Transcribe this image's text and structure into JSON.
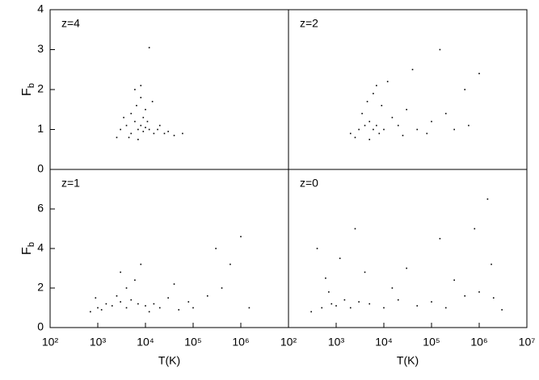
{
  "chart_data": [
    {
      "type": "scatter",
      "annotation": "z=4",
      "color": "#000000",
      "log_x": true,
      "x": [
        3000,
        4000,
        5000,
        6000,
        7000,
        8000,
        9000,
        10000,
        12000,
        15000,
        5000,
        6500,
        8000,
        10000,
        4500,
        7000,
        9000,
        11000,
        20000,
        30000,
        40000,
        60000,
        3500,
        2500,
        14000,
        18000,
        25000,
        8000,
        6000,
        12000
      ],
      "y": [
        1.0,
        1.1,
        0.9,
        1.2,
        1.0,
        1.1,
        0.95,
        1.05,
        1.0,
        0.9,
        1.4,
        1.6,
        1.8,
        1.5,
        0.8,
        0.75,
        1.3,
        1.2,
        1.1,
        0.95,
        0.85,
        0.9,
        1.3,
        0.8,
        1.7,
        1.0,
        0.9,
        2.1,
        2.0,
        3.05
      ],
      "xlim": [
        100,
        10000000
      ],
      "ylim": [
        0,
        4
      ],
      "yticks": [
        0,
        1,
        2,
        3,
        4
      ],
      "ylabel": [
        "F",
        "b"
      ]
    },
    {
      "type": "scatter",
      "annotation": "z=2",
      "color": "#000000",
      "log_x": true,
      "x": [
        2000,
        3000,
        4000,
        5000,
        6000,
        7000,
        8000,
        10000,
        3500,
        4500,
        6000,
        9000,
        15000,
        20000,
        30000,
        50000,
        80000,
        100000,
        200000,
        300000,
        500000,
        1000000,
        2500,
        12000,
        40000,
        150000,
        7000,
        5000,
        25000,
        600000
      ],
      "y": [
        0.9,
        1.0,
        1.1,
        1.2,
        1.0,
        1.1,
        0.9,
        1.0,
        1.4,
        1.7,
        1.9,
        1.6,
        1.3,
        1.1,
        1.5,
        1.0,
        0.9,
        1.2,
        1.4,
        1.0,
        2.0,
        2.4,
        0.8,
        2.2,
        2.5,
        3.0,
        2.1,
        0.75,
        0.85,
        1.1
      ],
      "xlim": [
        100,
        10000000
      ],
      "ylim": [
        0,
        4
      ]
    },
    {
      "type": "scatter",
      "annotation": "z=1",
      "color": "#000000",
      "log_x": true,
      "x": [
        700,
        1000,
        1500,
        2000,
        3000,
        4000,
        5000,
        7000,
        10000,
        1200,
        2500,
        4000,
        6000,
        15000,
        20000,
        30000,
        50000,
        80000,
        100000,
        200000,
        400000,
        600000,
        1000000,
        3000,
        8000,
        40000,
        300000,
        1500000,
        900,
        12000
      ],
      "y": [
        0.8,
        1.0,
        1.2,
        1.1,
        1.3,
        1.0,
        1.4,
        1.2,
        1.1,
        0.9,
        1.6,
        2.0,
        2.4,
        1.2,
        1.0,
        1.5,
        0.9,
        1.3,
        1.0,
        1.6,
        2.0,
        3.2,
        4.6,
        2.8,
        3.2,
        2.2,
        4.0,
        1.0,
        1.5,
        0.8
      ],
      "xlim": [
        100,
        10000000
      ],
      "ylim": [
        0,
        8
      ],
      "yticks": [
        0,
        2,
        4,
        6
      ],
      "ylabel": [
        "F",
        "b"
      ],
      "xlabel": "T(K)",
      "xticks": [
        {
          "value": 100,
          "label": "10²"
        },
        {
          "value": 1000,
          "label": "10³"
        },
        {
          "value": 10000,
          "label": "10⁴"
        },
        {
          "value": 100000,
          "label": "10⁵"
        },
        {
          "value": 1000000,
          "label": "10⁶"
        }
      ]
    },
    {
      "type": "scatter",
      "annotation": "z=0",
      "color": "#000000",
      "log_x": true,
      "x": [
        300,
        500,
        800,
        1000,
        1500,
        2000,
        3000,
        5000,
        10000,
        20000,
        50000,
        100000,
        200000,
        500000,
        1000000,
        2000000,
        3000000,
        600,
        1200,
        2500,
        400,
        700,
        30000,
        300000,
        800000,
        1500000,
        4000,
        15000,
        150000,
        1800000
      ],
      "y": [
        0.8,
        1.0,
        1.2,
        1.1,
        1.4,
        1.0,
        1.3,
        1.2,
        1.0,
        1.4,
        1.1,
        1.3,
        1.0,
        1.6,
        1.8,
        1.5,
        0.9,
        2.5,
        3.5,
        5.0,
        4.0,
        1.8,
        3.0,
        2.4,
        5.0,
        6.5,
        2.8,
        2.0,
        4.5,
        3.2
      ],
      "xlim": [
        100,
        10000000
      ],
      "ylim": [
        0,
        8
      ],
      "xlabel": "T(K)",
      "xticks": [
        {
          "value": 100,
          "label": "10²"
        },
        {
          "value": 1000,
          "label": "10³"
        },
        {
          "value": 10000,
          "label": "10⁴"
        },
        {
          "value": 100000,
          "label": "10⁵"
        },
        {
          "value": 1000000,
          "label": "10⁶"
        },
        {
          "value": 10000000,
          "label": "10⁷"
        }
      ]
    }
  ]
}
